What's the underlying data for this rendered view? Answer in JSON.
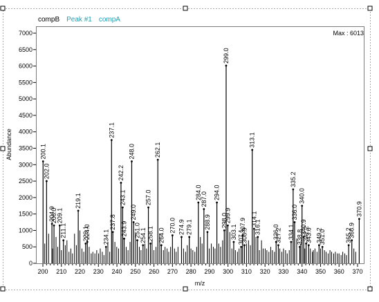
{
  "legend": {
    "series_b": "compB",
    "peak": "Peak #1",
    "series_a": "compA"
  },
  "max_label": "Max : 6013",
  "colors": {
    "bars": "#000000",
    "frame": "#7a7a7a",
    "handles": "#000000"
  },
  "chart_data": {
    "type": "bar",
    "title": "",
    "xlabel": "m/z",
    "ylabel": "Abundance",
    "xlim": [
      198,
      372
    ],
    "ylim": [
      0,
      7200
    ],
    "xticks": [
      200,
      210,
      220,
      230,
      240,
      250,
      260,
      270,
      280,
      290,
      300,
      310,
      320,
      330,
      340,
      350,
      360,
      370
    ],
    "yticks": [
      0,
      500,
      1000,
      1500,
      2000,
      2500,
      3000,
      3500,
      4000,
      4500,
      5000,
      5500,
      6000,
      6500,
      7000
    ],
    "grid": false,
    "legend_position": "top-left",
    "labeled_peaks": [
      {
        "mz": 200.1,
        "label": "200.1",
        "abundance": 3100
      },
      {
        "mz": 202.0,
        "label": "202.0",
        "abundance": 2500
      },
      {
        "mz": 204.9,
        "label": "204.9",
        "abundance": 1200
      },
      {
        "mz": 206.0,
        "label": "206.0",
        "abundance": 1150
      },
      {
        "mz": 209.1,
        "label": "209.1",
        "abundance": 1150
      },
      {
        "mz": 211.1,
        "label": "211.1",
        "abundance": 700
      },
      {
        "mz": 219.1,
        "label": "219.1",
        "abundance": 1600
      },
      {
        "mz": 223.1,
        "label": "223.1",
        "abundance": 600
      },
      {
        "mz": 224.0,
        "label": "224.0",
        "abundance": 650
      },
      {
        "mz": 234.1,
        "label": "234.1",
        "abundance": 500
      },
      {
        "mz": 237.1,
        "label": "237.1",
        "abundance": 3750
      },
      {
        "mz": 237.8,
        "label": "237.8",
        "abundance": 950
      },
      {
        "mz": 242.2,
        "label": "242.2",
        "abundance": 2450
      },
      {
        "mz": 243.1,
        "label": "243.1",
        "abundance": 1700
      },
      {
        "mz": 243.9,
        "label": "243.9",
        "abundance": 750
      },
      {
        "mz": 248.0,
        "label": "248.0",
        "abundance": 3100
      },
      {
        "mz": 249.0,
        "label": "249.0",
        "abundance": 1250
      },
      {
        "mz": 251.0,
        "label": "251.0",
        "abundance": 700
      },
      {
        "mz": 254.1,
        "label": "254.1",
        "abundance": 550
      },
      {
        "mz": 257.0,
        "label": "257.0",
        "abundance": 1700
      },
      {
        "mz": 258.1,
        "label": "258.1",
        "abundance": 600
      },
      {
        "mz": 262.1,
        "label": "262.1",
        "abundance": 3150
      },
      {
        "mz": 264.0,
        "label": "264.0",
        "abundance": 550
      },
      {
        "mz": 270.0,
        "label": "270.0",
        "abundance": 850
      },
      {
        "mz": 274.9,
        "label": "274.9",
        "abundance": 800
      },
      {
        "mz": 279.1,
        "label": "279.1",
        "abundance": 800
      },
      {
        "mz": 284.0,
        "label": "284.0",
        "abundance": 1850
      },
      {
        "mz": 287.0,
        "label": "287.0",
        "abundance": 1650
      },
      {
        "mz": 288.9,
        "label": "288.9",
        "abundance": 950
      },
      {
        "mz": 294.0,
        "label": "294.0",
        "abundance": 1850
      },
      {
        "mz": 298.0,
        "label": "298.0",
        "abundance": 1000
      },
      {
        "mz": 299.0,
        "label": "299.0",
        "abundance": 6013
      },
      {
        "mz": 299.9,
        "label": "299.9",
        "abundance": 1150
      },
      {
        "mz": 303.1,
        "label": "303.1",
        "abundance": 650
      },
      {
        "mz": 307.1,
        "label": "307.1",
        "abundance": 500
      },
      {
        "mz": 307.9,
        "label": "307.9",
        "abundance": 850
      },
      {
        "mz": 308.9,
        "label": "308.9",
        "abundance": 550
      },
      {
        "mz": 313.1,
        "label": "313.1",
        "abundance": 3450
      },
      {
        "mz": 314.1,
        "label": "314.1",
        "abundance": 1050
      },
      {
        "mz": 316.1,
        "label": "316.1",
        "abundance": 800
      },
      {
        "mz": 326.0,
        "label": "326.0",
        "abundance": 650
      },
      {
        "mz": 327.2,
        "label": "327.2",
        "abundance": 550
      },
      {
        "mz": 334.1,
        "label": "334.1",
        "abundance": 650
      },
      {
        "mz": 335.2,
        "label": "335.2",
        "abundance": 2250
      },
      {
        "mz": 336.0,
        "label": "336.0",
        "abundance": 1250
      },
      {
        "mz": 338.8,
        "label": "338.8",
        "abundance": 500
      },
      {
        "mz": 340.0,
        "label": "340.0",
        "abundance": 1750
      },
      {
        "mz": 340.9,
        "label": "340.9",
        "abundance": 800
      },
      {
        "mz": 342.2,
        "label": "342.2",
        "abundance": 600
      },
      {
        "mz": 343.6,
        "label": "343.6",
        "abundance": 550
      },
      {
        "mz": 349.2,
        "label": "349.2",
        "abundance": 550
      },
      {
        "mz": 351.0,
        "label": "351.0",
        "abundance": 500
      },
      {
        "mz": 365.2,
        "label": "365.2",
        "abundance": 550
      },
      {
        "mz": 366.9,
        "label": "366.9",
        "abundance": 700
      },
      {
        "mz": 370.9,
        "label": "370.9",
        "abundance": 1350
      }
    ],
    "unlabeled_peaks": [
      [
        201.0,
        600
      ],
      [
        203.1,
        900
      ],
      [
        205.2,
        450
      ],
      [
        207.1,
        800
      ],
      [
        208.0,
        500
      ],
      [
        210.0,
        400
      ],
      [
        212.1,
        550
      ],
      [
        213.0,
        700
      ],
      [
        214.1,
        350
      ],
      [
        215.1,
        450
      ],
      [
        216.0,
        300
      ],
      [
        217.1,
        900
      ],
      [
        218.1,
        550
      ],
      [
        220.0,
        1000
      ],
      [
        221.1,
        450
      ],
      [
        222.1,
        350
      ],
      [
        225.0,
        500
      ],
      [
        226.1,
        300
      ],
      [
        227.0,
        350
      ],
      [
        228.1,
        300
      ],
      [
        229.1,
        400
      ],
      [
        230.1,
        300
      ],
      [
        231.0,
        450
      ],
      [
        232.1,
        350
      ],
      [
        233.0,
        250
      ],
      [
        235.1,
        650
      ],
      [
        236.1,
        350
      ],
      [
        238.9,
        650
      ],
      [
        239.9,
        500
      ],
      [
        240.9,
        450
      ],
      [
        245.0,
        500
      ],
      [
        246.0,
        400
      ],
      [
        247.1,
        650
      ],
      [
        250.0,
        900
      ],
      [
        252.1,
        500
      ],
      [
        253.0,
        400
      ],
      [
        255.1,
        600
      ],
      [
        256.0,
        450
      ],
      [
        259.0,
        700
      ],
      [
        260.0,
        400
      ],
      [
        261.1,
        500
      ],
      [
        263.1,
        900
      ],
      [
        265.1,
        400
      ],
      [
        266.0,
        500
      ],
      [
        267.1,
        450
      ],
      [
        268.0,
        350
      ],
      [
        269.0,
        500
      ],
      [
        271.1,
        450
      ],
      [
        272.0,
        350
      ],
      [
        273.0,
        500
      ],
      [
        276.0,
        450
      ],
      [
        277.1,
        350
      ],
      [
        278.0,
        550
      ],
      [
        280.0,
        450
      ],
      [
        281.0,
        400
      ],
      [
        282.1,
        350
      ],
      [
        283.1,
        500
      ],
      [
        285.1,
        800
      ],
      [
        286.0,
        600
      ],
      [
        289.9,
        450
      ],
      [
        291.0,
        600
      ],
      [
        292.1,
        500
      ],
      [
        293.0,
        450
      ],
      [
        295.0,
        600
      ],
      [
        296.0,
        500
      ],
      [
        297.1,
        700
      ],
      [
        301.0,
        950
      ],
      [
        302.1,
        450
      ],
      [
        304.0,
        400
      ],
      [
        305.1,
        350
      ],
      [
        306.0,
        450
      ],
      [
        310.0,
        600
      ],
      [
        311.1,
        700
      ],
      [
        312.1,
        550
      ],
      [
        315.1,
        800
      ],
      [
        317.0,
        400
      ],
      [
        318.1,
        700
      ],
      [
        319.0,
        450
      ],
      [
        320.1,
        450
      ],
      [
        321.0,
        400
      ],
      [
        322.1,
        350
      ],
      [
        323.1,
        500
      ],
      [
        324.0,
        400
      ],
      [
        325.1,
        350
      ],
      [
        328.0,
        450
      ],
      [
        329.1,
        350
      ],
      [
        330.0,
        450
      ],
      [
        331.1,
        400
      ],
      [
        332.0,
        300
      ],
      [
        333.1,
        400
      ],
      [
        337.1,
        750
      ],
      [
        339.1,
        600
      ],
      [
        341.5,
        450
      ],
      [
        344.5,
        450
      ],
      [
        345.6,
        350
      ],
      [
        346.1,
        400
      ],
      [
        347.0,
        450
      ],
      [
        348.1,
        350
      ],
      [
        350.0,
        450
      ],
      [
        352.1,
        400
      ],
      [
        353.0,
        350
      ],
      [
        354.1,
        300
      ],
      [
        355.1,
        400
      ],
      [
        356.0,
        350
      ],
      [
        357.1,
        300
      ],
      [
        358.0,
        350
      ],
      [
        359.1,
        300
      ],
      [
        360.0,
        300
      ],
      [
        361.1,
        250
      ],
      [
        362.0,
        350
      ],
      [
        363.1,
        300
      ],
      [
        364.0,
        250
      ],
      [
        368.0,
        450
      ],
      [
        369.0,
        350
      ]
    ]
  }
}
